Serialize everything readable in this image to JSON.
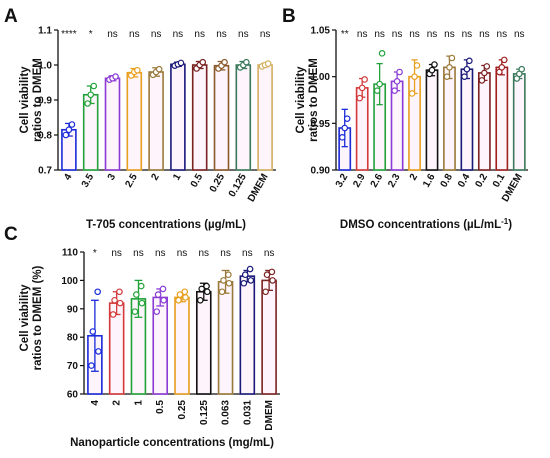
{
  "chart_data": [
    {
      "panel": "A",
      "type": "bar",
      "xlabel": "T-705 concentrations (µg/mL)",
      "ylabel": [
        "Cell viability",
        "ratios to DMEM"
      ],
      "ylim": [
        0.7,
        1.1
      ],
      "yticks": [
        "0.7",
        "0.8",
        "0.9",
        "1.0",
        "1.1"
      ],
      "ytick_values": [
        0.7,
        0.8,
        0.9,
        1.0,
        1.1
      ],
      "categories": [
        "4",
        "3.5",
        "3",
        "2.5",
        "2",
        "1",
        "0.5",
        "0.25",
        "0.125",
        "DMEM"
      ],
      "values": [
        0.815,
        0.915,
        0.962,
        0.978,
        0.98,
        1.002,
        1.0,
        0.998,
        1.0,
        1.0
      ],
      "errors": [
        0.018,
        0.025,
        0.007,
        0.012,
        0.012,
        0.006,
        0.01,
        0.012,
        0.01,
        0.005
      ],
      "points": [
        [
          0.8,
          0.815,
          0.83
        ],
        [
          0.89,
          0.915,
          0.94
        ],
        [
          0.958,
          0.962,
          0.967
        ],
        [
          0.97,
          0.98,
          0.985
        ],
        [
          0.972,
          0.98,
          0.988
        ],
        [
          0.998,
          1.002,
          1.006
        ],
        [
          0.99,
          1.0,
          1.008
        ],
        [
          0.99,
          0.998,
          1.008
        ],
        [
          0.993,
          1.0,
          1.008
        ],
        [
          0.996,
          1.0,
          1.004
        ]
      ],
      "significance": [
        "****",
        "*",
        "ns",
        "ns",
        "ns",
        "ns",
        "ns",
        "ns",
        "ns",
        "ns"
      ],
      "colors": [
        "#1a2bd8",
        "#22a33a",
        "#8b3bd6",
        "#e8a020",
        "#9a7a3a",
        "#1a1a7a",
        "#7a2222",
        "#8b5a2b",
        "#3a7a5a",
        "#d4b060"
      ]
    },
    {
      "panel": "B",
      "type": "bar",
      "xlabel": "DMSO concentrations (µL/mL",
      "xlabel_sup": "-1",
      "xlabel_tail": ")",
      "ylabel": [
        "Cell viability",
        "ratios to DMEM"
      ],
      "ylim": [
        0.9,
        1.05
      ],
      "yticks": [
        "0.90",
        "0.95",
        "1.00",
        "1.05"
      ],
      "ytick_values": [
        0.9,
        0.95,
        1.0,
        1.05
      ],
      "categories": [
        "3.2",
        "2.9",
        "2.6",
        "2.3",
        "2",
        "1.6",
        "0.8",
        "0.4",
        "0.2",
        "0.1",
        "DMEM"
      ],
      "values": [
        0.945,
        0.988,
        0.992,
        0.995,
        1.0,
        1.007,
        1.01,
        1.008,
        1.004,
        1.01,
        1.003
      ],
      "errors": [
        0.02,
        0.01,
        0.022,
        0.01,
        0.018,
        0.006,
        0.012,
        0.01,
        0.008,
        0.008,
        0.005
      ],
      "points": [
        [
          0.935,
          0.945,
          0.955
        ],
        [
          0.977,
          0.988,
          0.997
        ],
        [
          0.985,
          0.992,
          1.025
        ],
        [
          0.985,
          0.995,
          1.005
        ],
        [
          0.982,
          1.0,
          1.012
        ],
        [
          1.003,
          1.007,
          1.013
        ],
        [
          1.0,
          1.01,
          1.02
        ],
        [
          1.0,
          1.008,
          1.017
        ],
        [
          0.996,
          1.004,
          1.011
        ],
        [
          1.005,
          1.01,
          1.018
        ],
        [
          0.998,
          1.003,
          1.008
        ]
      ],
      "significance": [
        "**",
        "ns",
        "ns",
        "ns",
        "ns",
        "ns",
        "ns",
        "ns",
        "ns",
        "ns",
        "ns"
      ],
      "colors": [
        "#1a2bd8",
        "#d43a3a",
        "#22a33a",
        "#8b3bd6",
        "#e8a020",
        "#111111",
        "#9a7a3a",
        "#1a1a7a",
        "#7a2222",
        "#a02020",
        "#3a7a5a"
      ]
    },
    {
      "panel": "C",
      "type": "bar",
      "xlabel": "Nanoparticle concentrations (mg/mL)",
      "ylabel": [
        "Cell viability",
        "ratios to DMEM (%)"
      ],
      "ylim": [
        60,
        110
      ],
      "yticks": [
        "60",
        "70",
        "80",
        "90",
        "100",
        "110"
      ],
      "ytick_values": [
        60,
        70,
        80,
        90,
        100,
        110
      ],
      "categories": [
        "4",
        "2",
        "1",
        "0.5",
        "0.25",
        "0.125",
        "0.063",
        "0.031",
        "DMEM"
      ],
      "values": [
        80.5,
        92.0,
        93.5,
        94.0,
        94.0,
        96.0,
        99.5,
        101.5,
        100.0
      ],
      "errors": [
        12.5,
        4.0,
        6.5,
        3.0,
        1.5,
        3.0,
        4.0,
        2.0,
        3.5
      ],
      "points": [
        [
          70,
          75,
          82,
          96
        ],
        [
          88,
          92,
          93,
          96
        ],
        [
          89,
          92,
          95,
          98
        ],
        [
          89,
          93,
          95,
          97
        ],
        [
          93,
          94,
          95,
          96
        ],
        [
          93,
          96,
          97,
          98
        ],
        [
          96,
          99,
          100,
          102
        ],
        [
          99,
          100,
          102,
          104
        ],
        [
          96,
          100,
          102,
          103
        ]
      ],
      "significance": [
        "*",
        "ns",
        "ns",
        "ns",
        "ns",
        "ns",
        "ns",
        "ns",
        "ns"
      ],
      "colors": [
        "#1a2bd8",
        "#d43a3a",
        "#22a33a",
        "#8b3bd6",
        "#e8a020",
        "#111111",
        "#9a7a3a",
        "#1a1a7a",
        "#7a2222"
      ]
    }
  ]
}
